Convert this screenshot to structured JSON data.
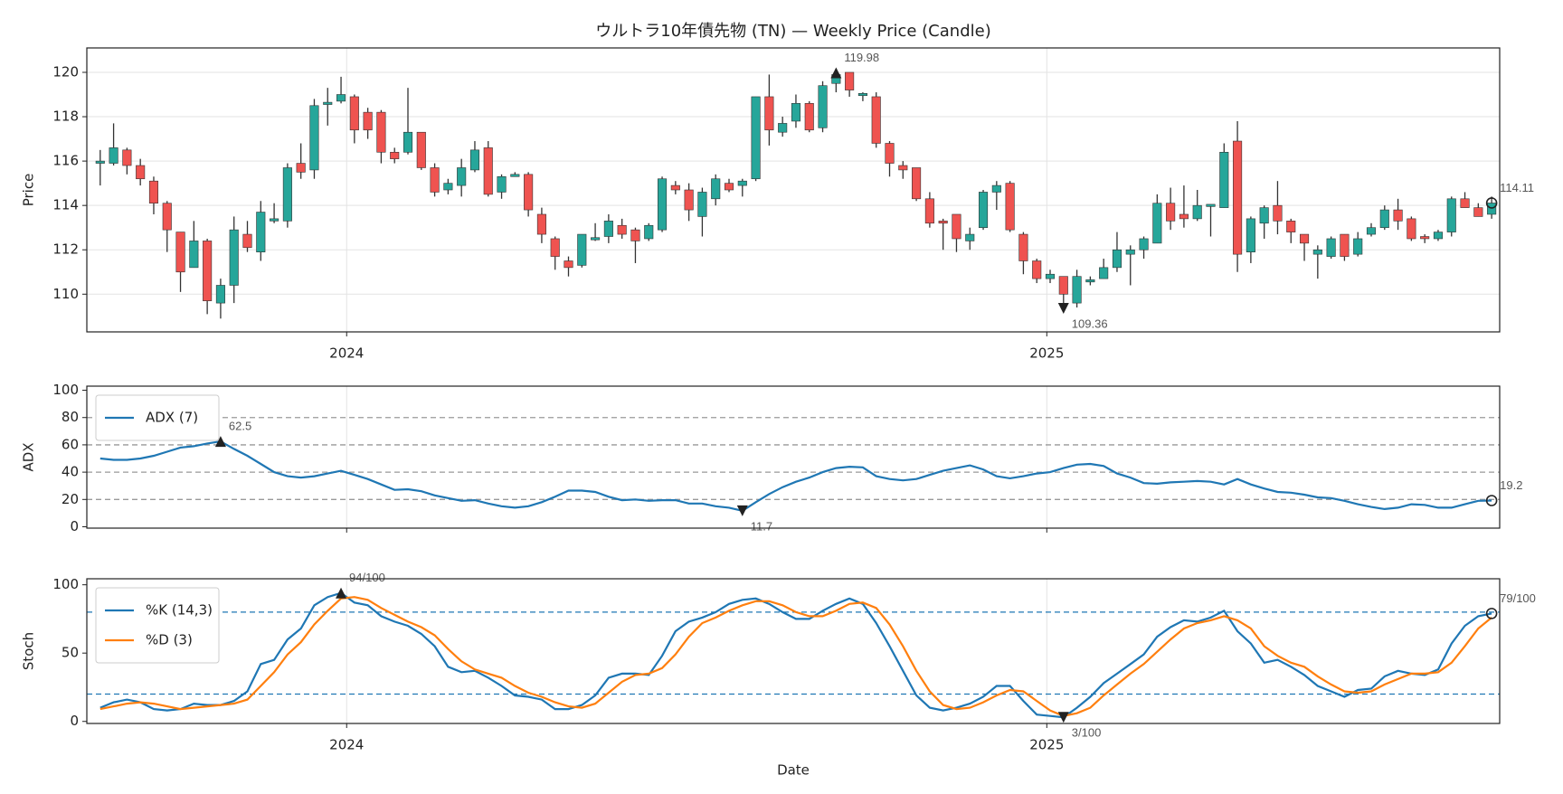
{
  "chart_data": [
    {
      "type": "candlestick",
      "title": "ウルトラ10年債先物 (TN) — Weekly Price (Candle)",
      "ylabel": "Price",
      "xlim": [
        -1,
        104.6
      ],
      "xticks": [
        {
          "value": 18.42,
          "label": "2024"
        },
        {
          "value": 70.75,
          "label": "2025"
        }
      ],
      "ylim": [
        108.3,
        121.1
      ],
      "yticks": [
        110,
        112,
        114,
        116,
        118,
        120
      ],
      "grid": "both",
      "up_color": "#26a69a",
      "down_color": "#ef5350",
      "wick_color": "#333333",
      "open": [
        115.9,
        115.9,
        116.5,
        115.8,
        115.1,
        114.1,
        112.8,
        111.2,
        112.4,
        109.6,
        110.4,
        112.7,
        111.9,
        113.3,
        113.3,
        115.9,
        115.6,
        118.55,
        118.7,
        118.9,
        118.2,
        118.2,
        116.4,
        116.4,
        117.3,
        115.7,
        114.7,
        114.9,
        115.6,
        116.6,
        114.6,
        115.3,
        115.4,
        113.6,
        112.5,
        111.5,
        111.3,
        112.45,
        112.6,
        113.1,
        112.9,
        112.5,
        112.9,
        114.9,
        114.7,
        113.5,
        114.3,
        115.0,
        114.9,
        115.2,
        118.9,
        117.3,
        117.8,
        118.6,
        117.5,
        119.5,
        120.0,
        118.95,
        118.9,
        116.8,
        115.8,
        115.7,
        114.3,
        113.3,
        113.6,
        112.4,
        113.0,
        114.6,
        115.0,
        112.7,
        111.5,
        110.7,
        110.8,
        109.6,
        110.55,
        110.7,
        111.2,
        111.8,
        112.0,
        112.3,
        114.1,
        113.6,
        113.4,
        113.95,
        113.9,
        116.9,
        111.9,
        113.2,
        114.0,
        113.3,
        112.7,
        111.8,
        111.7,
        112.7,
        111.8,
        112.7,
        113.0,
        113.8,
        113.4,
        112.6,
        112.5,
        112.8,
        114.3,
        113.9,
        113.6
      ],
      "high": [
        116.5,
        117.7,
        116.6,
        116.1,
        115.3,
        114.2,
        112.8,
        113.3,
        112.5,
        110.7,
        113.5,
        113.3,
        114.2,
        114.1,
        115.9,
        116.8,
        118.8,
        119.3,
        119.8,
        119.0,
        118.4,
        118.3,
        116.6,
        119.3,
        117.3,
        115.9,
        115.2,
        116.1,
        116.9,
        116.9,
        115.4,
        115.5,
        115.5,
        113.9,
        112.6,
        111.7,
        112.7,
        113.2,
        113.6,
        113.4,
        113.0,
        113.2,
        115.3,
        115.1,
        115.0,
        114.8,
        115.4,
        115.2,
        115.2,
        118.9,
        119.9,
        118.0,
        119.0,
        118.7,
        119.6,
        119.98,
        119.95,
        119.1,
        119.1,
        116.9,
        116.0,
        115.7,
        114.6,
        113.4,
        113.6,
        113.0,
        114.7,
        115.1,
        115.1,
        112.8,
        111.6,
        111.1,
        110.8,
        111.1,
        110.8,
        111.6,
        112.8,
        112.2,
        112.6,
        114.5,
        114.8,
        114.9,
        114.7,
        114.05,
        116.8,
        117.8,
        113.5,
        114.0,
        115.1,
        113.4,
        112.7,
        112.2,
        112.6,
        112.7,
        112.8,
        113.2,
        114.0,
        114.3,
        113.5,
        112.7,
        112.9,
        114.4,
        114.6,
        114.1,
        114.4
      ],
      "low": [
        114.9,
        115.8,
        115.4,
        114.9,
        113.6,
        111.9,
        110.1,
        111.2,
        109.1,
        108.9,
        109.6,
        111.9,
        111.5,
        113.2,
        113.0,
        115.2,
        115.2,
        117.6,
        118.6,
        116.8,
        117.0,
        115.9,
        115.9,
        116.3,
        115.6,
        114.4,
        114.5,
        114.4,
        115.5,
        114.4,
        114.3,
        115.3,
        113.5,
        112.3,
        111.1,
        110.8,
        111.2,
        112.4,
        112.3,
        112.5,
        111.4,
        112.4,
        112.8,
        114.5,
        113.3,
        112.6,
        114.0,
        114.6,
        114.4,
        115.1,
        116.7,
        117.1,
        117.5,
        117.3,
        117.3,
        119.1,
        118.9,
        118.7,
        116.6,
        115.3,
        115.2,
        114.2,
        113.0,
        112.0,
        111.9,
        112.0,
        112.9,
        113.8,
        112.8,
        110.9,
        110.5,
        110.5,
        109.36,
        109.4,
        110.4,
        110.7,
        111.0,
        110.4,
        111.6,
        112.3,
        112.9,
        113.0,
        113.3,
        112.6,
        113.9,
        111.0,
        111.4,
        112.5,
        112.7,
        112.3,
        111.5,
        110.7,
        111.6,
        111.5,
        111.7,
        112.6,
        112.9,
        112.9,
        112.4,
        112.3,
        112.4,
        112.6,
        113.9,
        113.5,
        113.4
      ],
      "close": [
        116.0,
        116.6,
        115.8,
        115.2,
        114.1,
        112.9,
        111.0,
        112.4,
        109.7,
        110.4,
        112.9,
        112.1,
        113.7,
        113.4,
        115.7,
        115.5,
        118.5,
        118.65,
        119.0,
        117.4,
        117.4,
        116.4,
        116.1,
        117.3,
        115.7,
        114.6,
        115.0,
        115.7,
        116.5,
        114.5,
        115.3,
        115.4,
        113.8,
        112.7,
        111.7,
        111.2,
        112.7,
        112.55,
        113.3,
        112.7,
        112.4,
        113.1,
        115.2,
        114.7,
        113.8,
        114.6,
        115.2,
        114.7,
        115.1,
        118.9,
        117.4,
        117.7,
        118.6,
        117.4,
        119.4,
        119.9,
        119.2,
        119.05,
        116.8,
        115.9,
        115.6,
        114.3,
        113.2,
        113.2,
        112.5,
        112.7,
        114.6,
        114.9,
        112.9,
        111.5,
        110.7,
        110.9,
        110.0,
        110.8,
        110.65,
        111.2,
        112.0,
        112.0,
        112.5,
        114.1,
        113.3,
        113.4,
        114.0,
        114.05,
        116.4,
        111.8,
        113.4,
        113.9,
        113.3,
        112.8,
        112.3,
        112.0,
        112.5,
        111.7,
        112.5,
        113.0,
        113.8,
        113.3,
        112.5,
        112.5,
        112.8,
        114.3,
        113.9,
        113.5,
        114.11
      ],
      "annotations": [
        {
          "x": 55,
          "y": 119.98,
          "label": "119.98",
          "marker": "triangle-up"
        },
        {
          "x": 72,
          "y": 109.36,
          "label": "109.36",
          "marker": "triangle-down"
        },
        {
          "x": 104,
          "y": 114.11,
          "label": "114.11",
          "marker": "circle"
        }
      ]
    },
    {
      "type": "line",
      "ylabel": "ADX",
      "xlim": [
        -1,
        104.6
      ],
      "ylim": [
        -1,
        103
      ],
      "yticks": [
        0,
        20,
        40,
        60,
        80,
        100
      ],
      "grid": "x",
      "hlines": [
        20,
        40,
        60,
        80
      ],
      "hline_color": "#999999",
      "legend": "upper left",
      "series": [
        {
          "name": "ADX (7)",
          "color": "#1f77b4",
          "values": [
            50,
            49,
            49,
            50,
            52,
            55,
            58,
            59,
            61,
            62.5,
            57,
            52,
            46,
            40,
            37,
            36,
            37,
            39,
            41,
            38,
            35,
            31,
            27,
            27.5,
            26,
            23,
            21,
            19,
            19.5,
            17,
            15,
            14,
            15,
            18,
            22,
            26.5,
            26.5,
            25.5,
            22,
            19.5,
            20,
            19,
            19.5,
            19.5,
            17,
            17,
            15,
            14,
            11.7,
            18,
            24,
            29,
            33,
            36,
            40,
            43,
            44,
            43.5,
            37,
            35,
            34,
            35,
            38,
            41,
            43,
            45,
            42,
            37,
            35.5,
            37,
            39,
            40,
            43,
            45.5,
            46,
            44.5,
            39,
            36,
            32,
            31.5,
            32.5,
            33,
            33.5,
            33,
            31,
            35,
            31,
            28,
            25.5,
            25,
            23.5,
            21.5,
            21,
            19,
            16.5,
            14.5,
            13,
            14,
            16.5,
            16,
            14,
            14,
            16.5,
            19,
            19.2
          ]
        }
      ],
      "annotations": [
        {
          "x": 9,
          "y": 62.5,
          "label": "62.5",
          "marker": "triangle-up"
        },
        {
          "x": 48,
          "y": 11.7,
          "label": "11.7",
          "marker": "triangle-down"
        },
        {
          "x": 104,
          "y": 19.2,
          "label": "19.2",
          "marker": "circle"
        }
      ]
    },
    {
      "type": "line",
      "ylabel": "Stoch",
      "xlabel": "Date",
      "xlim": [
        -1,
        104.6
      ],
      "xticks": [
        {
          "value": 18.42,
          "label": "2024"
        },
        {
          "value": 70.75,
          "label": "2025"
        }
      ],
      "ylim": [
        -1.5,
        104.4
      ],
      "yticks": [
        0,
        50,
        100
      ],
      "grid": "x",
      "hlines": [
        20,
        80
      ],
      "hline_color": "#1f77b4",
      "legend": "upper left",
      "series": [
        {
          "name": "%K (14,3)",
          "color": "#1f77b4",
          "values": [
            10,
            14,
            16,
            14,
            9,
            8,
            9,
            13,
            12,
            12,
            15,
            22,
            42,
            45,
            60,
            68,
            85,
            91,
            94,
            87,
            85,
            77,
            73,
            70,
            64,
            55,
            40,
            36,
            37,
            32,
            26,
            19,
            18,
            16,
            9,
            9,
            12,
            19,
            32,
            35,
            35,
            34,
            48,
            66,
            73,
            76,
            80,
            86,
            89,
            90,
            86,
            80,
            75,
            75,
            81,
            86,
            90,
            86,
            72,
            55,
            37,
            19,
            10,
            8,
            10,
            13,
            18,
            26,
            26,
            15,
            5,
            4,
            3,
            10,
            18,
            28,
            35,
            42,
            49,
            62,
            69,
            74,
            73,
            76,
            81,
            66,
            57,
            43,
            45,
            40,
            34,
            26,
            22,
            18,
            23,
            24,
            33,
            37,
            35,
            34,
            38,
            57,
            70,
            77,
            79
          ]
        },
        {
          "name": "%D (3)",
          "color": "#ff7f0e",
          "values": [
            9,
            11,
            13,
            14,
            13,
            11,
            9,
            10,
            11,
            12,
            13,
            16,
            26,
            36,
            49,
            58,
            71,
            81,
            90,
            91,
            89,
            83,
            78,
            73,
            69,
            63,
            53,
            44,
            38,
            35,
            32,
            26,
            21,
            18,
            14,
            11,
            10,
            13,
            21,
            29,
            34,
            35,
            39,
            49,
            62,
            72,
            76,
            81,
            85,
            88,
            88,
            85,
            80,
            77,
            77,
            81,
            86,
            87,
            83,
            71,
            55,
            37,
            22,
            12,
            9,
            10,
            14,
            19,
            23,
            22,
            15,
            8,
            4,
            6,
            10,
            19,
            27,
            35,
            42,
            51,
            60,
            68,
            72,
            74,
            77,
            74,
            68,
            55,
            48,
            43,
            40,
            33,
            27,
            22,
            21,
            22,
            27,
            31,
            35,
            35,
            36,
            43,
            55,
            68,
            76
          ]
        }
      ],
      "annotations": [
        {
          "x": 18,
          "y": 94,
          "label": "94/100",
          "marker": "triangle-up"
        },
        {
          "x": 72,
          "y": 3,
          "label": "3/100",
          "marker": "triangle-down"
        },
        {
          "x": 104,
          "y": 79,
          "label": "79/100",
          "marker": "circle"
        }
      ]
    }
  ]
}
